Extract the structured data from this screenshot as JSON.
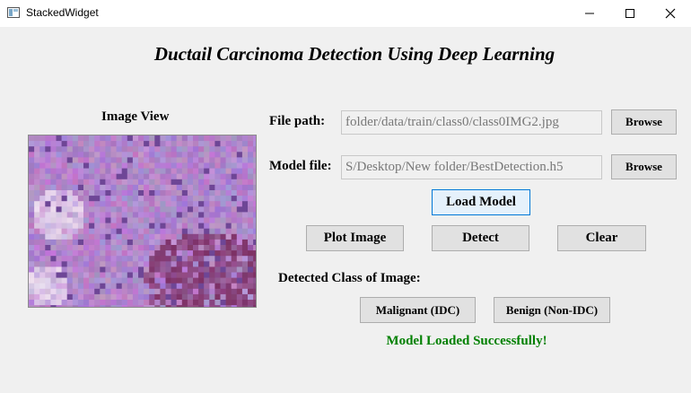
{
  "window": {
    "title": "StackedWidget",
    "controls": [
      "minimize-icon",
      "maximize-icon",
      "close-icon"
    ]
  },
  "app": {
    "heading": "Ductail Carcinoma Detection Using Deep Learning"
  },
  "image_view": {
    "label": "Image View"
  },
  "file_path": {
    "label": "File path:",
    "value": "folder/data/train/class0/class0IMG2.jpg",
    "browse_label": "Browse"
  },
  "model_file": {
    "label": "Model file:",
    "value": "S/Desktop/New folder/BestDetection.h5",
    "browse_label": "Browse"
  },
  "buttons": {
    "load_model": "Load Model",
    "plot_image": "Plot Image",
    "detect": "Detect",
    "clear": "Clear"
  },
  "detection": {
    "label": "Detected Class of Image:",
    "malignant_label": "Malignant (IDC)",
    "benign_label": "Benign (Non-IDC)"
  },
  "status": {
    "text": "Model Loaded Successfully!",
    "color": "#008000"
  },
  "colors": {
    "focus_border": "#0078d7",
    "tissue_base": "#b98ed6"
  }
}
